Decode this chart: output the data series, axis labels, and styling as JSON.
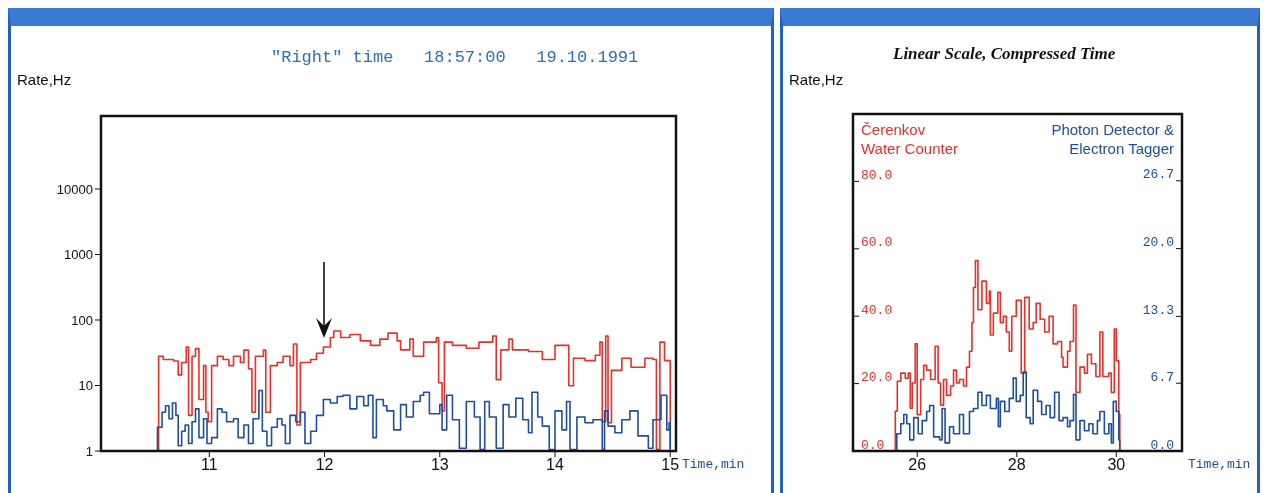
{
  "chart_data": [
    {
      "type": "step",
      "title": "\"Right\" time   18:57:00   19.10.1991",
      "ylabel": "Rate,Hz",
      "xlabel": "Time,min",
      "xlim": [
        10.06,
        15.05
      ],
      "xticks": [
        11,
        12,
        13,
        14,
        15
      ],
      "ylim": [
        1,
        130000
      ],
      "yticks": [
        1,
        10,
        100,
        1000,
        10000
      ],
      "log": true,
      "grid": false,
      "series": [
        {
          "color": "#e8302a",
          "x": [
            10.55,
            10.56,
            10.6,
            10.69,
            10.73,
            10.76,
            10.8,
            10.82,
            10.85,
            10.88,
            10.91,
            10.95,
            10.97,
            10.99,
            11.02,
            11.07,
            11.12,
            11.17,
            11.21,
            11.27,
            11.3,
            11.34,
            11.37,
            11.4,
            11.44,
            11.47,
            11.49,
            11.53,
            11.59,
            11.64,
            11.7,
            11.73,
            11.76,
            11.79,
            11.83,
            11.88,
            11.93,
            11.99,
            12.05,
            12.08,
            12.14,
            12.22,
            12.31,
            12.4,
            12.48,
            12.55,
            12.63,
            12.66,
            12.74,
            12.77,
            12.86,
            12.97,
            12.99,
            13.02,
            13.04,
            13.11,
            13.23,
            13.34,
            13.46,
            13.49,
            13.53,
            13.6,
            13.63,
            13.77,
            13.89,
            14.0,
            14.09,
            14.12,
            14.16,
            14.26,
            14.35,
            14.39,
            14.41,
            14.44,
            14.46,
            14.49,
            14.58,
            14.66,
            14.78,
            14.85,
            14.88,
            14.91,
            14.95,
            14.99,
            15.0
          ],
          "values": [
            1,
            27.9,
            25,
            23.7,
            14.5,
            22.4,
            38.7,
            3.5,
            27.9,
            36.6,
            6.1,
            20.1,
            3.9,
            2.8,
            20.1,
            27.9,
            25,
            20.1,
            27.9,
            22.4,
            34.7,
            18,
            3.9,
            27.9,
            27.9,
            34.7,
            3.9,
            20.1,
            22.4,
            27.9,
            20.1,
            43,
            2.5,
            22.4,
            22.4,
            25,
            31,
            38.7,
            54,
            68,
            54,
            60,
            48,
            41,
            51,
            63,
            48,
            35,
            51,
            28,
            46,
            54,
            11,
            4.1,
            46,
            41,
            37,
            46,
            57,
            12.3,
            35,
            51,
            35,
            33,
            25,
            41,
            41,
            9.9,
            26,
            24,
            29,
            46,
            2.8,
            57,
            2.7,
            17,
            26,
            19,
            26,
            25,
            1.05,
            46,
            24,
            24,
            1.05
          ]
        },
        {
          "color": "#1f4e9c",
          "x": [
            10.54,
            10.55,
            10.59,
            10.62,
            10.65,
            10.68,
            10.71,
            10.73,
            10.76,
            10.79,
            10.82,
            10.85,
            10.88,
            10.91,
            10.95,
            10.98,
            11.02,
            11.07,
            11.11,
            11.15,
            11.21,
            11.25,
            11.3,
            11.34,
            11.38,
            11.43,
            11.46,
            11.5,
            11.54,
            11.59,
            11.63,
            11.66,
            11.7,
            11.75,
            11.79,
            11.83,
            11.88,
            11.93,
            11.99,
            12.05,
            12.11,
            12.16,
            12.22,
            12.28,
            12.34,
            12.38,
            12.42,
            12.45,
            12.51,
            12.54,
            12.6,
            12.66,
            12.71,
            12.77,
            12.83,
            12.86,
            12.91,
            13.0,
            13.02,
            13.06,
            13.11,
            13.17,
            13.23,
            13.3,
            13.35,
            13.39,
            13.43,
            13.49,
            13.55,
            13.6,
            13.66,
            13.72,
            13.77,
            13.8,
            13.85,
            13.89,
            13.95,
            14.0,
            14.06,
            14.1,
            14.13,
            14.19,
            14.26,
            14.33,
            14.41,
            14.43,
            14.46,
            14.52,
            14.58,
            14.65,
            14.72,
            14.81,
            14.85,
            14.92,
            14.97,
            14.99,
            15.0
          ],
          "values": [
            1,
            2.3,
            3.9,
            4.9,
            3.1,
            5.4,
            3.5,
            1.2,
            2,
            2.5,
            1.3,
            2.8,
            4.4,
            1.6,
            3.1,
            1.3,
            1.6,
            4.4,
            3.9,
            2.8,
            3.1,
            1.6,
            2.5,
            1.3,
            3.1,
            8.4,
            2,
            1.2,
            2.3,
            3.1,
            2.5,
            1.3,
            3.5,
            2.8,
            3.9,
            1.3,
            2,
            3.5,
            6.1,
            5.4,
            6.8,
            7.1,
            4.4,
            6.8,
            4.9,
            7.1,
            1.6,
            6.1,
            4.9,
            4.1,
            2.1,
            5.1,
            3.3,
            5.7,
            7.1,
            7.9,
            3.7,
            5.1,
            2.1,
            7.1,
            3,
            1.1,
            5.7,
            3.3,
            1.05,
            5.7,
            3.3,
            1.1,
            5.1,
            3.3,
            6.4,
            3,
            1.9,
            7.9,
            3.3,
            2.4,
            1.05,
            4.1,
            2.1,
            5.7,
            1.05,
            3.3,
            2.7,
            3,
            1.05,
            4.1,
            2.4,
            1.9,
            3,
            4.1,
            1.7,
            1.1,
            3,
            7.1,
            2.1,
            2.7,
            1.05
          ]
        }
      ]
    },
    {
      "type": "step",
      "title": "Linear Scale, Compressed Time",
      "ylabel": "Rate,Hz",
      "xlabel": "Time,min",
      "xlim": [
        24.71,
        31.32
      ],
      "xticks": [
        26,
        28,
        30
      ],
      "ylim": [
        0,
        100
      ],
      "yticks": [
        {
          "value": 0,
          "label": "0.0"
        },
        {
          "value": 20,
          "label": "20.0"
        },
        {
          "value": 40,
          "label": "40.0"
        },
        {
          "value": 60,
          "label": "60.0"
        },
        {
          "value": 80,
          "label": "80.0"
        }
      ],
      "y2lim": [
        0,
        33.3
      ],
      "y2ticks": [
        {
          "value": 0,
          "label": "0.0"
        },
        {
          "value": 6.7,
          "label": "6.7"
        },
        {
          "value": 13.3,
          "label": "13.3"
        },
        {
          "value": 20,
          "label": "20.0"
        },
        {
          "value": 26.7,
          "label": "26.7"
        }
      ],
      "grid": false,
      "legend": "top",
      "series": [
        {
          "name": "Čerenkov Water Counter",
          "color": "#e8302a",
          "x": [
            24.75,
            25.5,
            25.56,
            25.6,
            25.67,
            25.76,
            25.82,
            25.86,
            25.9,
            25.96,
            26.0,
            26.07,
            26.13,
            26.19,
            26.27,
            26.36,
            26.42,
            26.47,
            26.53,
            26.59,
            26.67,
            26.73,
            26.79,
            26.85,
            26.93,
            26.99,
            27.05,
            27.1,
            27.13,
            27.17,
            27.22,
            27.3,
            27.39,
            27.45,
            27.47,
            27.53,
            27.62,
            27.67,
            27.73,
            27.79,
            27.85,
            27.9,
            27.99,
            28.05,
            28.09,
            28.16,
            28.25,
            28.33,
            28.39,
            28.47,
            28.56,
            28.65,
            28.73,
            28.82,
            28.9,
            28.93,
            29.02,
            29.07,
            29.14,
            29.19,
            29.27,
            29.36,
            29.42,
            29.5,
            29.59,
            29.67,
            29.73,
            29.85,
            29.9,
            29.96,
            30.0,
            30.05,
            30.07
          ],
          "values": [
            0,
            0,
            11.8,
            20.7,
            23.1,
            21.6,
            23.1,
            12.7,
            20.2,
            31.8,
            10.8,
            21.2,
            25.4,
            24.0,
            21.2,
            31.1,
            20.2,
            13.6,
            21.2,
            16.5,
            19.3,
            24.0,
            20.2,
            21.2,
            19.3,
            24.9,
            29.6,
            38.1,
            48.5,
            56.5,
            41.9,
            50.4,
            43.8,
            47.5,
            34.4,
            40.9,
            47.1,
            38.1,
            40.0,
            35.3,
            29.6,
            40.0,
            44.7,
            44.7,
            23.1,
            45.6,
            36.2,
            38.1,
            43.8,
            39.1,
            35.3,
            40.0,
            31.8,
            32.5,
            27.8,
            24.9,
            29.6,
            32.5,
            43.3,
            17.4,
            24.9,
            23.1,
            28.7,
            25.9,
            22.1,
            35.3,
            22.1,
            23.1,
            17.4,
            36.2,
            26.8,
            10.8,
            0
          ]
        },
        {
          "name": "Photon Detector & Electron Tagger",
          "color": "#1f4e9c",
          "axis": "y2",
          "x": [
            24.75,
            25.56,
            25.59,
            25.67,
            25.73,
            25.79,
            25.85,
            25.93,
            26.02,
            26.1,
            26.19,
            26.25,
            26.33,
            26.45,
            26.5,
            26.56,
            26.65,
            26.73,
            26.85,
            26.93,
            27.05,
            27.13,
            27.22,
            27.3,
            27.39,
            27.47,
            27.59,
            27.63,
            27.67,
            27.76,
            27.85,
            27.93,
            27.99,
            28.07,
            28.13,
            28.19,
            28.27,
            28.33,
            28.42,
            28.5,
            28.59,
            28.67,
            28.76,
            28.85,
            28.93,
            29.02,
            29.07,
            29.14,
            29.19,
            29.27,
            29.36,
            29.45,
            29.53,
            29.62,
            29.67,
            29.76,
            29.85,
            29.9,
            29.94,
            30.0,
            30.05,
            30.07
          ],
          "values": [
            0,
            0,
            1.7,
            2.7,
            3.6,
            2.7,
            1.1,
            3.3,
            1.7,
            3.0,
            3.9,
            4.5,
            1.4,
            1.1,
            4.2,
            0.8,
            2.4,
            1.7,
            3.6,
            1.7,
            3.9,
            4.2,
            5.8,
            4.5,
            5.5,
            4.2,
            5.2,
            2.4,
            4.9,
            3.9,
            5.2,
            7.2,
            4.9,
            5.5,
            7.8,
            3.3,
            2.7,
            6.0,
            4.9,
            3.6,
            4.5,
            3.3,
            5.8,
            3.0,
            3.3,
            2.4,
            3.0,
            5.6,
            1.1,
            3.0,
            2.0,
            2.7,
            1.7,
            3.0,
            3.9,
            1.7,
            2.7,
            0.8,
            4.9,
            3.9,
            1.1,
            0
          ]
        }
      ]
    }
  ]
}
